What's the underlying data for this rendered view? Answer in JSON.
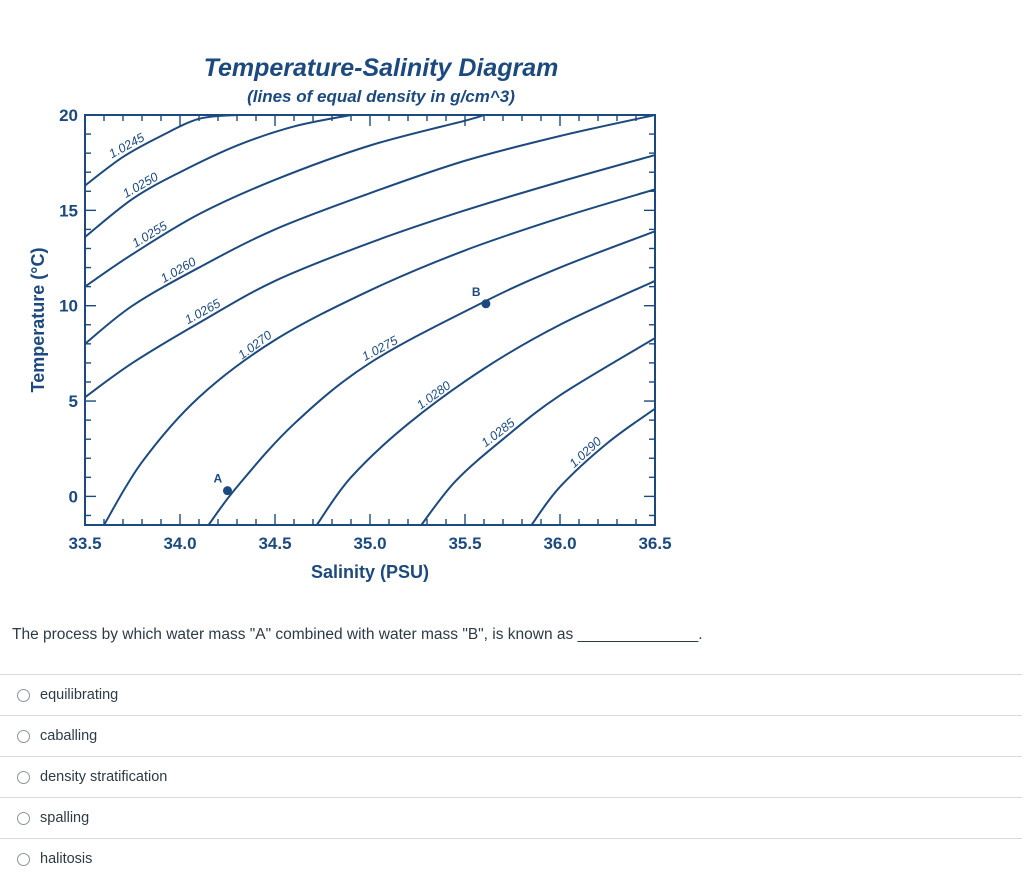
{
  "question": {
    "text": "The process by which water mass \"A\" combined with water mass \"B\", is known as ______________."
  },
  "answers": [
    {
      "label": "equilibrating"
    },
    {
      "label": "caballing"
    },
    {
      "label": "density stratification"
    },
    {
      "label": "spalling"
    },
    {
      "label": "halitosis"
    }
  ],
  "colors": {
    "chart_blue": "#1d4a7e",
    "text": "#2d3b45",
    "divider": "#d7dbdf"
  },
  "chart_data": {
    "type": "line",
    "title": "Temperature-Salinity Diagram",
    "subtitle": "(lines of equal density in g/cm^3)",
    "xlabel": "Salinity (PSU)",
    "ylabel": "Temperature (°C)",
    "xlim": [
      33.5,
      36.5
    ],
    "ylim": [
      -1.5,
      20
    ],
    "x_ticks": [
      "33.5",
      "34.0",
      "34.5",
      "35.0",
      "35.5",
      "36.0",
      "36.5"
    ],
    "y_ticks": [
      "0",
      "5",
      "10",
      "15",
      "20"
    ],
    "grid": false,
    "isopycnals": [
      {
        "label": "1.0245",
        "points": [
          [
            33.5,
            16.3
          ],
          [
            33.7,
            17.8
          ],
          [
            33.9,
            18.9
          ],
          [
            34.1,
            19.8
          ],
          [
            34.3,
            20.0
          ]
        ]
      },
      {
        "label": "1.0250",
        "points": [
          [
            33.5,
            13.6
          ],
          [
            33.75,
            15.6
          ],
          [
            34.0,
            17.0
          ],
          [
            34.3,
            18.4
          ],
          [
            34.6,
            19.4
          ],
          [
            34.9,
            20.0
          ]
        ]
      },
      {
        "label": "1.0255",
        "points": [
          [
            33.5,
            11.0
          ],
          [
            33.75,
            12.7
          ],
          [
            34.1,
            14.8
          ],
          [
            34.5,
            16.6
          ],
          [
            35.0,
            18.4
          ],
          [
            35.5,
            19.7
          ],
          [
            35.6,
            20.0
          ]
        ]
      },
      {
        "label": "1.0260",
        "points": [
          [
            33.5,
            8.0
          ],
          [
            33.75,
            10.0
          ],
          [
            34.1,
            12.0
          ],
          [
            34.5,
            14.0
          ],
          [
            35.0,
            15.9
          ],
          [
            35.5,
            17.6
          ],
          [
            36.0,
            18.9
          ],
          [
            36.5,
            20.0
          ]
        ]
      },
      {
        "label": "1.0265",
        "points": [
          [
            33.5,
            5.2
          ],
          [
            33.75,
            7.0
          ],
          [
            34.1,
            9.1
          ],
          [
            34.5,
            11.3
          ],
          [
            35.0,
            13.3
          ],
          [
            35.5,
            15.0
          ],
          [
            36.0,
            16.5
          ],
          [
            36.5,
            17.9
          ]
        ]
      },
      {
        "label": "1.0270",
        "points": [
          [
            33.6,
            -1.5
          ],
          [
            33.8,
            1.8
          ],
          [
            34.1,
            5.2
          ],
          [
            34.5,
            8.2
          ],
          [
            35.0,
            10.8
          ],
          [
            35.5,
            12.9
          ],
          [
            36.0,
            14.6
          ],
          [
            36.5,
            16.1
          ]
        ]
      },
      {
        "label": "1.0275",
        "points": [
          [
            34.15,
            -1.5
          ],
          [
            34.3,
            0.5
          ],
          [
            34.6,
            3.8
          ],
          [
            35.0,
            7.0
          ],
          [
            35.6,
            10.2
          ],
          [
            36.0,
            12.0
          ],
          [
            36.5,
            13.9
          ]
        ]
      },
      {
        "label": "1.0280",
        "points": [
          [
            34.72,
            -1.5
          ],
          [
            34.9,
            1.0
          ],
          [
            35.2,
            3.8
          ],
          [
            35.6,
            6.7
          ],
          [
            36.0,
            9.0
          ],
          [
            36.5,
            11.3
          ]
        ]
      },
      {
        "label": "1.0285",
        "points": [
          [
            35.27,
            -1.5
          ],
          [
            35.45,
            0.8
          ],
          [
            35.7,
            3.0
          ],
          [
            36.0,
            5.3
          ],
          [
            36.5,
            8.3
          ]
        ]
      },
      {
        "label": "1.0290",
        "points": [
          [
            35.85,
            -1.5
          ],
          [
            36.0,
            0.5
          ],
          [
            36.25,
            2.8
          ],
          [
            36.5,
            4.6
          ]
        ]
      }
    ],
    "points": [
      {
        "label": "A",
        "x": 34.25,
        "y": 0.3
      },
      {
        "label": "B",
        "x": 35.61,
        "y": 10.1
      }
    ]
  }
}
